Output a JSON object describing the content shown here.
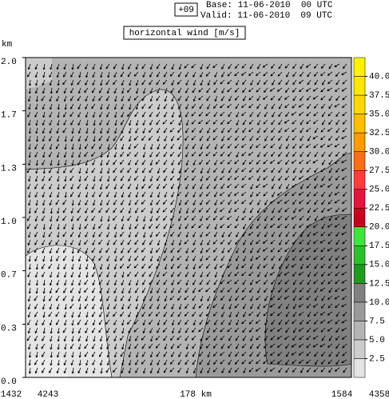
{
  "chart_data": {
    "type": "contour",
    "forecast": "+09",
    "base": "Base: 11-06-2010  00 UTC",
    "valid": "Valid: 11-06-2010  09 UTC",
    "title": "horizontal wind [m/s]",
    "y_label": "km",
    "ylim": [
      0,
      2
    ],
    "yticks": [
      {
        "value": 0,
        "label": "0.0"
      },
      {
        "value": 0.333,
        "label": "0.3"
      },
      {
        "value": 0.667,
        "label": "0.7"
      },
      {
        "value": 1,
        "label": "1.0"
      },
      {
        "value": 1.333,
        "label": "1.3"
      },
      {
        "value": 1.667,
        "label": "1.7"
      },
      {
        "value": 2,
        "label": "2.0"
      }
    ],
    "x_labels": [
      "1432",
      "4243",
      "178 km",
      "1584",
      "4358"
    ],
    "clim": [
      0,
      42.5
    ],
    "cticks": [
      2.5,
      {
        "value": 5,
        "label": "5.0"
      },
      7.5,
      {
        "value": 10,
        "label": "10.0"
      },
      12.5,
      {
        "value": 15,
        "label": "15.0"
      },
      17.5,
      {
        "value": 20,
        "label": "20.0"
      },
      22.5,
      {
        "value": 25,
        "label": "25.0"
      },
      27.5,
      {
        "value": 30,
        "label": "30.0"
      },
      32.5,
      {
        "value": 35,
        "label": "35.0"
      },
      37.5,
      {
        "value": 40,
        "label": "40.0"
      }
    ],
    "colors": [
      "#e4e4e4",
      "#cccccc",
      "#b4b4b4",
      "#9a9a9a",
      "#808080",
      "#1e9a1e",
      "#2cc02c",
      "#3ce63c",
      "#c8001e",
      "#e6143c",
      "#ff3c3c",
      "#ff6e14",
      "#ff9a00",
      "#ffbe00",
      "#ffd700",
      "#ffe600",
      "#fff200"
    ]
  }
}
